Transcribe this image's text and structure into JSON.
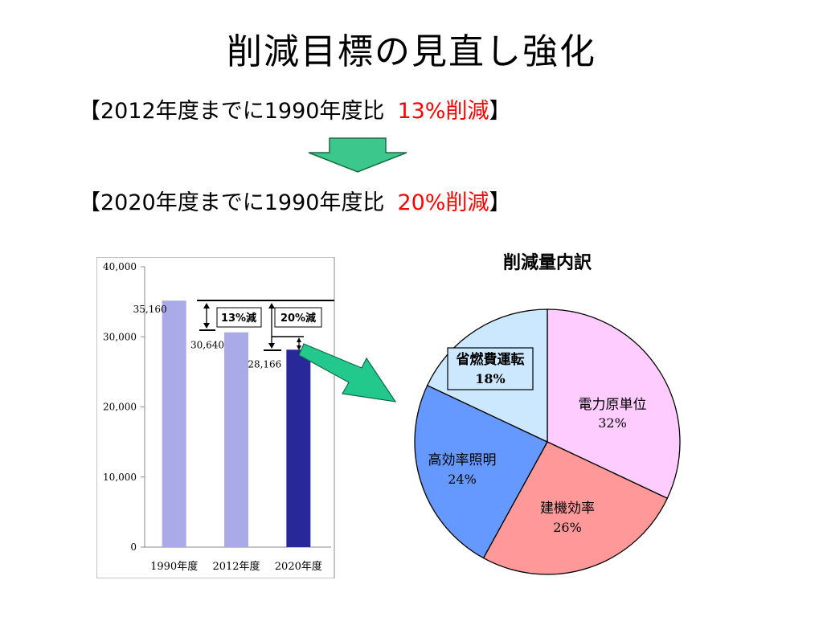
{
  "slide": {
    "title": "削減目標の見直し強化",
    "target_2012": {
      "prefix": "【2012年度までに1990年度比",
      "highlight": "13%削減",
      "suffix": "】"
    },
    "target_2020": {
      "prefix": "【2020年度までに1990年度比",
      "highlight": "20%削減",
      "suffix": "】"
    }
  },
  "colors": {
    "red": "#ff0000",
    "arrow_green": "#3cc88c",
    "bar_light": "#aaaae8",
    "bar_dark": "#28289a"
  },
  "chart_data": [
    {
      "type": "bar",
      "categories": [
        "1990年度",
        "2012年度",
        "2020年度"
      ],
      "values": [
        35160,
        30640,
        28166
      ],
      "value_labels": [
        "35,160",
        "30,640",
        "28,166"
      ],
      "ylim": [
        0,
        40000
      ],
      "yticks": [
        0,
        10000,
        20000,
        30000,
        40000
      ],
      "ytick_labels": [
        "0",
        "10,000",
        "20,000",
        "30,000",
        "40,000"
      ],
      "bar_colors": [
        "#aaaae8",
        "#aaaae8",
        "#28289a"
      ],
      "annotations": [
        "13%減",
        "20%減"
      ],
      "grid": false
    },
    {
      "type": "pie",
      "title": "削減量内訳",
      "slices": [
        {
          "label": "電力原単位",
          "value": 32,
          "value_label": "32%",
          "color": "#ffccff"
        },
        {
          "label": "建機効率",
          "value": 26,
          "value_label": "26%",
          "color": "#ff9999"
        },
        {
          "label": "高効率照明",
          "value": 24,
          "value_label": "24%",
          "color": "#6699ff"
        },
        {
          "label": "省燃費運転",
          "value": 18,
          "value_label": "18%",
          "color": "#cce8ff"
        }
      ]
    }
  ]
}
